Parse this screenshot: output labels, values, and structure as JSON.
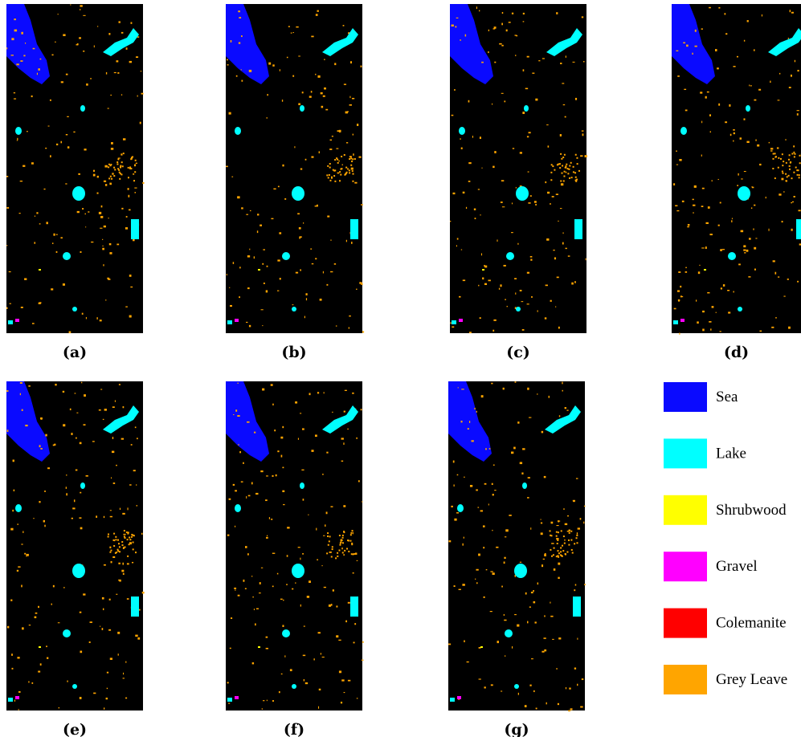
{
  "panels": [
    {
      "label": "(a)"
    },
    {
      "label": "(b)"
    },
    {
      "label": "(c)"
    },
    {
      "label": "(d)"
    },
    {
      "label": "(e)"
    },
    {
      "label": "(f)"
    },
    {
      "label": "(g)"
    }
  ],
  "legend": [
    {
      "name": "Sea",
      "color": "#0a0aff"
    },
    {
      "name": "Lake",
      "color": "#00ffff"
    },
    {
      "name": "Shrubwood",
      "color": "#ffff00"
    },
    {
      "name": "Gravel",
      "color": "#ff00ff"
    },
    {
      "name": "Colemanite",
      "color": "#ff0000"
    },
    {
      "name": "Grey Leave",
      "color": "#ffa500"
    }
  ]
}
